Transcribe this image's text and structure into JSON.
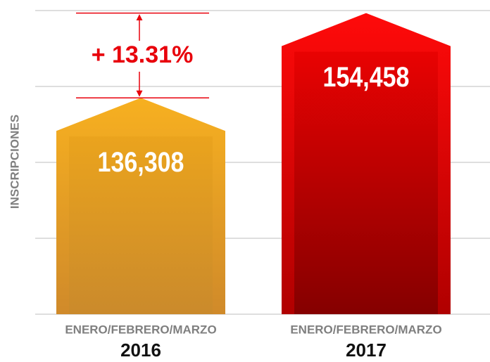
{
  "chart_data": {
    "type": "bar",
    "y_label": "INSCRIPCIONES",
    "categories": [
      "2016",
      "2017"
    ],
    "period_labels": [
      "ENERO/FEBRERO/MARZO",
      "ENERO/FEBRERO/MARZO"
    ],
    "values": [
      136308,
      154458
    ],
    "value_labels": [
      "136,308",
      "154,458"
    ],
    "colors": [
      "#f2a81d",
      "#e60000"
    ],
    "annotation": "+ 13.31%",
    "annotation_color": "#e8000b",
    "ylim": [
      90000,
      155000
    ],
    "yticks": [
      90000,
      106250,
      122500,
      138750,
      155000
    ],
    "grid": true
  }
}
